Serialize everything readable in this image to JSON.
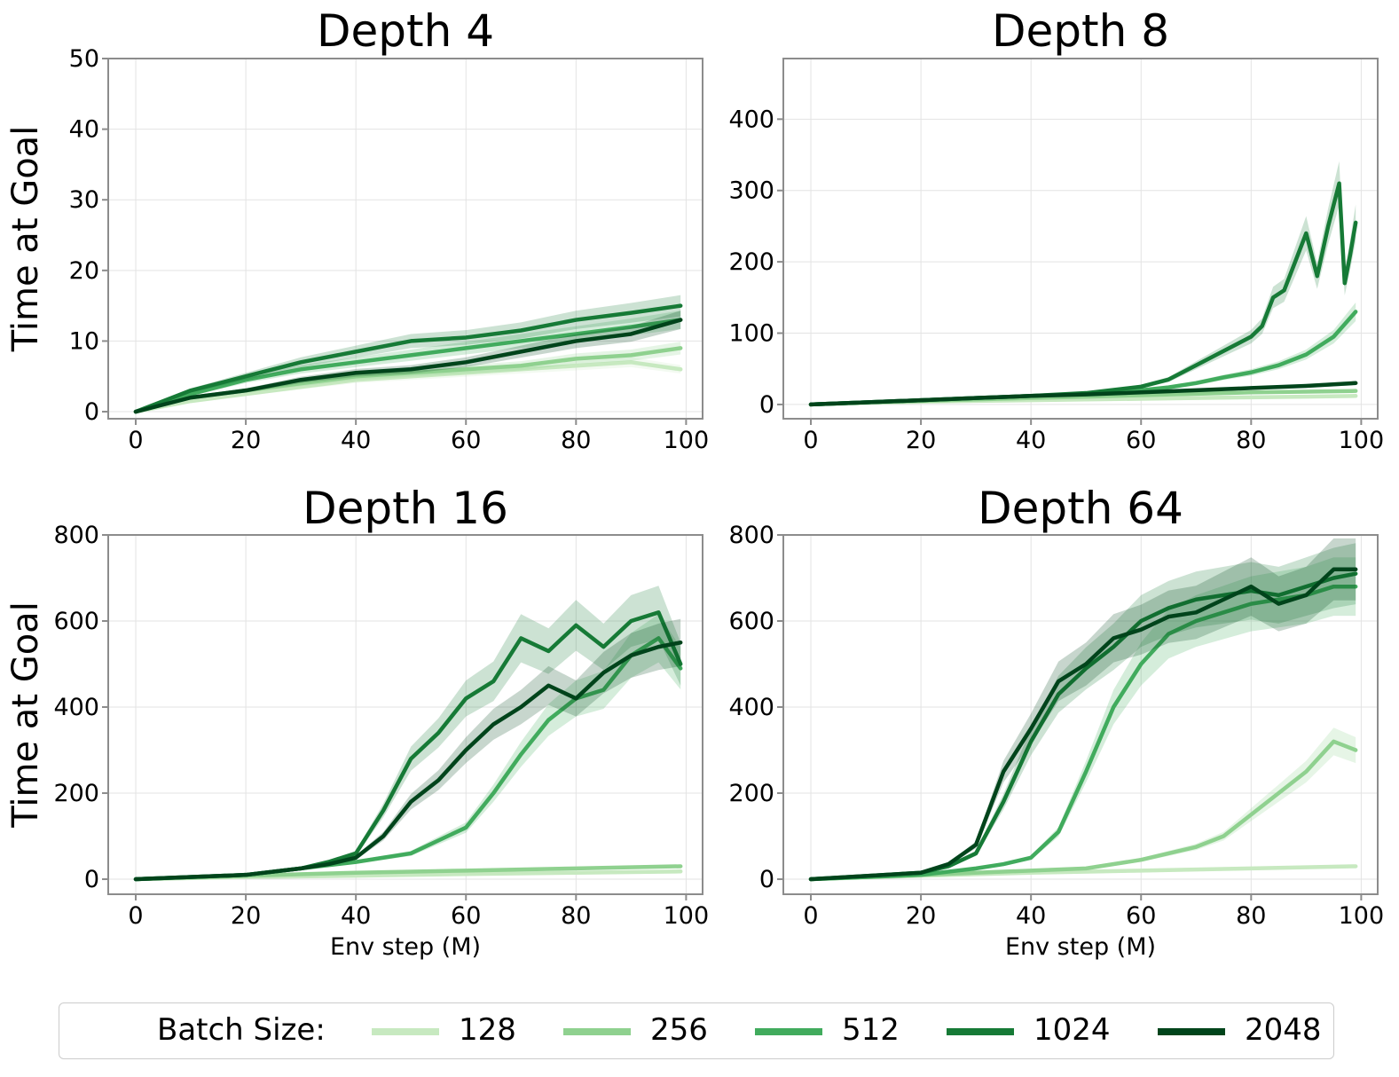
{
  "chart_data": [
    {
      "type": "line",
      "title": "Depth 4",
      "xlabel": "",
      "ylabel": "Time at Goal",
      "xlim": [
        -5,
        103
      ],
      "ylim": [
        -1,
        50
      ],
      "xticks": [
        0,
        20,
        40,
        60,
        80,
        100
      ],
      "yticks": [
        0,
        10,
        20,
        30,
        40,
        50
      ],
      "grid": true,
      "series": [
        {
          "name": "128",
          "x": [
            0,
            10,
            20,
            30,
            40,
            50,
            60,
            70,
            80,
            90,
            99
          ],
          "y": [
            0,
            1.5,
            2.5,
            3.5,
            4.5,
            5,
            5.5,
            6,
            6.5,
            7,
            6
          ]
        },
        {
          "name": "256",
          "x": [
            0,
            10,
            20,
            30,
            40,
            50,
            60,
            70,
            80,
            90,
            99
          ],
          "y": [
            0,
            2,
            3,
            4,
            5,
            5.5,
            6,
            6.5,
            7.5,
            8,
            9
          ]
        },
        {
          "name": "512",
          "x": [
            0,
            10,
            20,
            30,
            40,
            50,
            60,
            70,
            80,
            90,
            99
          ],
          "y": [
            0,
            2.5,
            4.5,
            6,
            7,
            8,
            9,
            10,
            11,
            12,
            13
          ]
        },
        {
          "name": "1024",
          "x": [
            0,
            10,
            20,
            30,
            40,
            50,
            60,
            70,
            80,
            90,
            99
          ],
          "y": [
            0,
            3,
            5,
            7,
            8.5,
            10,
            10.5,
            11.5,
            13,
            14,
            15
          ]
        },
        {
          "name": "2048",
          "x": [
            0,
            10,
            20,
            30,
            40,
            50,
            60,
            70,
            80,
            90,
            99
          ],
          "y": [
            0,
            2,
            3,
            4.5,
            5.5,
            6,
            7,
            8.5,
            10,
            11,
            13
          ]
        }
      ]
    },
    {
      "type": "line",
      "title": "Depth 8",
      "xlabel": "",
      "ylabel": "",
      "xlim": [
        -5,
        103
      ],
      "ylim": [
        -20,
        485
      ],
      "xticks": [
        0,
        20,
        40,
        60,
        80,
        100
      ],
      "yticks": [
        0,
        100,
        200,
        300,
        400
      ],
      "grid": true,
      "series": [
        {
          "name": "128",
          "x": [
            0,
            10,
            20,
            30,
            40,
            50,
            60,
            70,
            80,
            90,
            99
          ],
          "y": [
            0,
            2,
            4,
            5,
            6,
            7,
            8,
            9,
            10,
            11,
            12
          ]
        },
        {
          "name": "256",
          "x": [
            0,
            10,
            20,
            30,
            40,
            50,
            60,
            70,
            80,
            90,
            99
          ],
          "y": [
            0,
            3,
            5,
            7,
            9,
            11,
            13,
            15,
            17,
            18,
            19
          ]
        },
        {
          "name": "512",
          "x": [
            0,
            10,
            20,
            30,
            40,
            50,
            60,
            65,
            70,
            75,
            80,
            85,
            90,
            95,
            99
          ],
          "y": [
            0,
            3,
            6,
            9,
            12,
            15,
            20,
            24,
            30,
            38,
            45,
            55,
            70,
            95,
            130
          ]
        },
        {
          "name": "1024",
          "x": [
            0,
            10,
            20,
            30,
            40,
            50,
            60,
            65,
            70,
            75,
            80,
            82,
            84,
            86,
            88,
            90,
            92,
            94,
            96,
            97,
            98,
            99
          ],
          "y": [
            0,
            3,
            6,
            9,
            12,
            16,
            25,
            35,
            55,
            75,
            95,
            110,
            150,
            160,
            200,
            240,
            180,
            250,
            310,
            170,
            210,
            255
          ]
        },
        {
          "name": "2048",
          "x": [
            0,
            10,
            20,
            30,
            40,
            50,
            60,
            70,
            80,
            90,
            99
          ],
          "y": [
            0,
            3,
            6,
            9,
            12,
            14,
            17,
            20,
            23,
            26,
            30
          ]
        }
      ]
    },
    {
      "type": "line",
      "title": "Depth 16",
      "xlabel": "Env step (M)",
      "ylabel": "Time at Goal",
      "xlim": [
        -5,
        103
      ],
      "ylim": [
        -35,
        800
      ],
      "xticks": [
        0,
        20,
        40,
        60,
        80,
        100
      ],
      "yticks": [
        0,
        200,
        400,
        600,
        800
      ],
      "grid": true,
      "series": [
        {
          "name": "128",
          "x": [
            0,
            20,
            40,
            60,
            80,
            99
          ],
          "y": [
            0,
            5,
            8,
            12,
            15,
            18
          ]
        },
        {
          "name": "256",
          "x": [
            0,
            20,
            40,
            60,
            80,
            99
          ],
          "y": [
            0,
            8,
            15,
            20,
            25,
            30
          ]
        },
        {
          "name": "512",
          "x": [
            0,
            20,
            30,
            40,
            45,
            50,
            55,
            60,
            65,
            70,
            75,
            80,
            85,
            90,
            95,
            99
          ],
          "y": [
            0,
            10,
            25,
            40,
            50,
            60,
            90,
            120,
            200,
            290,
            370,
            420,
            440,
            520,
            560,
            490
          ]
        },
        {
          "name": "1024",
          "x": [
            0,
            20,
            30,
            35,
            40,
            45,
            50,
            55,
            60,
            65,
            70,
            75,
            80,
            85,
            90,
            95,
            99
          ],
          "y": [
            0,
            10,
            25,
            40,
            60,
            160,
            280,
            340,
            420,
            460,
            560,
            530,
            590,
            540,
            600,
            620,
            500
          ]
        },
        {
          "name": "2048",
          "x": [
            0,
            20,
            30,
            35,
            40,
            45,
            50,
            55,
            60,
            65,
            70,
            75,
            80,
            85,
            90,
            95,
            99
          ],
          "y": [
            0,
            10,
            25,
            35,
            50,
            100,
            180,
            230,
            300,
            360,
            400,
            450,
            420,
            480,
            520,
            540,
            550
          ]
        }
      ]
    },
    {
      "type": "line",
      "title": "Depth 64",
      "xlabel": "Env step (M)",
      "ylabel": "",
      "xlim": [
        -5,
        103
      ],
      "ylim": [
        -35,
        800
      ],
      "xticks": [
        0,
        20,
        40,
        60,
        80,
        100
      ],
      "yticks": [
        0,
        200,
        400,
        600,
        800
      ],
      "grid": true,
      "series": [
        {
          "name": "128",
          "x": [
            0,
            20,
            40,
            60,
            80,
            99
          ],
          "y": [
            0,
            8,
            15,
            20,
            25,
            30
          ]
        },
        {
          "name": "256",
          "x": [
            0,
            20,
            40,
            50,
            60,
            65,
            70,
            75,
            80,
            85,
            90,
            95,
            99
          ],
          "y": [
            0,
            10,
            20,
            25,
            45,
            60,
            75,
            100,
            150,
            200,
            250,
            320,
            300
          ]
        },
        {
          "name": "512",
          "x": [
            0,
            20,
            30,
            35,
            40,
            45,
            50,
            55,
            60,
            65,
            70,
            75,
            80,
            85,
            90,
            95,
            99
          ],
          "y": [
            0,
            10,
            25,
            35,
            50,
            110,
            250,
            400,
            500,
            570,
            600,
            620,
            640,
            650,
            660,
            680,
            680
          ]
        },
        {
          "name": "1024",
          "x": [
            0,
            20,
            25,
            30,
            35,
            40,
            45,
            50,
            55,
            60,
            65,
            70,
            75,
            80,
            85,
            90,
            95,
            99
          ],
          "y": [
            0,
            15,
            30,
            60,
            180,
            320,
            430,
            490,
            540,
            600,
            630,
            650,
            660,
            670,
            660,
            680,
            700,
            710
          ]
        },
        {
          "name": "2048",
          "x": [
            0,
            20,
            25,
            30,
            35,
            40,
            45,
            50,
            55,
            60,
            65,
            70,
            75,
            80,
            85,
            90,
            95,
            99
          ],
          "y": [
            0,
            15,
            35,
            80,
            250,
            350,
            460,
            500,
            560,
            580,
            610,
            620,
            650,
            680,
            640,
            660,
            720,
            720
          ]
        }
      ]
    }
  ],
  "legend": {
    "title": "Batch Size:",
    "entries": [
      {
        "label": "128",
        "color": "#c7e9c0"
      },
      {
        "label": "256",
        "color": "#8fd18f"
      },
      {
        "label": "512",
        "color": "#41ab5d"
      },
      {
        "label": "1024",
        "color": "#167a36"
      },
      {
        "label": "2048",
        "color": "#00441b"
      }
    ]
  }
}
